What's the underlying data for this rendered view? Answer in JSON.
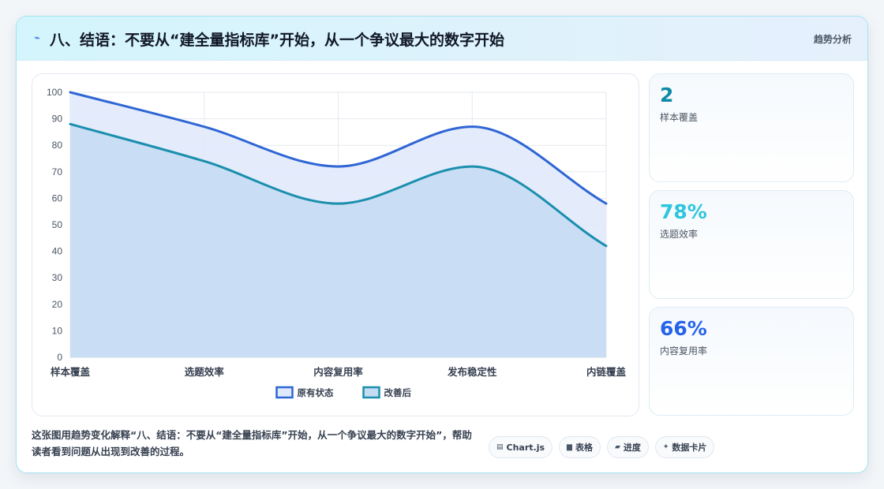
{
  "header": {
    "icon": "trend-icon",
    "title": "八、结语：不要从“建全量指标库”开始，从一个争议最大的数字开始",
    "tag": "趋势分析"
  },
  "chart_data": {
    "type": "area",
    "categories": [
      "样本覆盖",
      "选题效率",
      "内容复用率",
      "发布稳定性",
      "内链覆盖"
    ],
    "series": [
      {
        "name": "原有状态",
        "values": [
          100,
          87,
          72,
          87,
          58
        ],
        "color": "#2f66d4",
        "fill": "#dfe9fb"
      },
      {
        "name": "改善后",
        "values": [
          88,
          74,
          58,
          72,
          42
        ],
        "color": "#1b8fad",
        "fill": "#c4dcf2"
      }
    ],
    "y_ticks": [
      0,
      10,
      20,
      30,
      40,
      50,
      60,
      70,
      80,
      90,
      100
    ],
    "ylim": [
      0,
      100
    ],
    "grid": true,
    "legend_position": "bottom"
  },
  "stats": [
    {
      "value": "2",
      "label": "样本覆盖",
      "color": "#0e8aa6"
    },
    {
      "value": "78%",
      "label": "选题效率",
      "color": "#2cc6dd"
    },
    {
      "value": "66%",
      "label": "内容复用率",
      "color": "#2563eb"
    }
  ],
  "caption": "这张图用趋势变化解释“八、结语：不要从“建全量指标库”开始，从一个争议最大的数字开始”，帮助读者看到问题从出现到改善的过程。",
  "chips": [
    {
      "icon": "▤",
      "label": "Chart.js"
    },
    {
      "icon": "▆",
      "label": "表格"
    },
    {
      "icon": "▰",
      "label": "进度"
    },
    {
      "icon": "✦",
      "label": "数据卡片"
    }
  ]
}
